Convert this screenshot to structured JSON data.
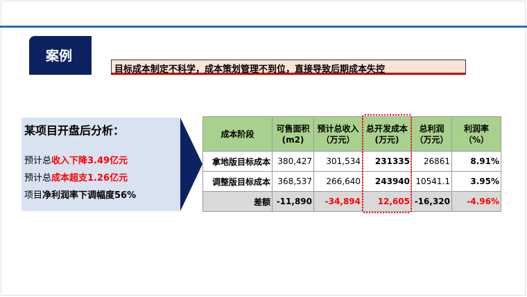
{
  "header": {
    "tab_label": "案例",
    "subtitle": "目标成本制定不科学，成本策划管理不到位，直接导致后期成本失控"
  },
  "analysis": {
    "title": "某项目开盘后分析：",
    "lines": [
      {
        "prefix": "预计总",
        "highlight": "收入下降3.49亿元"
      },
      {
        "prefix": "预计总",
        "highlight": "成本超支1.26亿元"
      },
      {
        "prefix": "项目",
        "highlight": "净利润率下调幅度56%"
      }
    ]
  },
  "table": {
    "headers": [
      "成本阶段",
      "可售面积 (m2)",
      "预计总收入 （万元）",
      "总开发成本 (万元)",
      "总利润 （万元）",
      "利润率 （%）"
    ],
    "rows": [
      [
        "拿地版目标成本",
        "380,427",
        "301,534",
        "231335",
        "26861",
        "8.91%"
      ],
      [
        "调整版目标成本",
        "368,537",
        "266,640",
        "243940",
        "10541.1",
        "3.95%"
      ],
      [
        "差额",
        "-11,890",
        "-34,894",
        "12,605",
        "-16,320",
        "-4.96%"
      ]
    ]
  },
  "colors": {
    "navy": "#0D2260",
    "accent_red": "#FF0000",
    "header_green": "#A9D18E"
  }
}
